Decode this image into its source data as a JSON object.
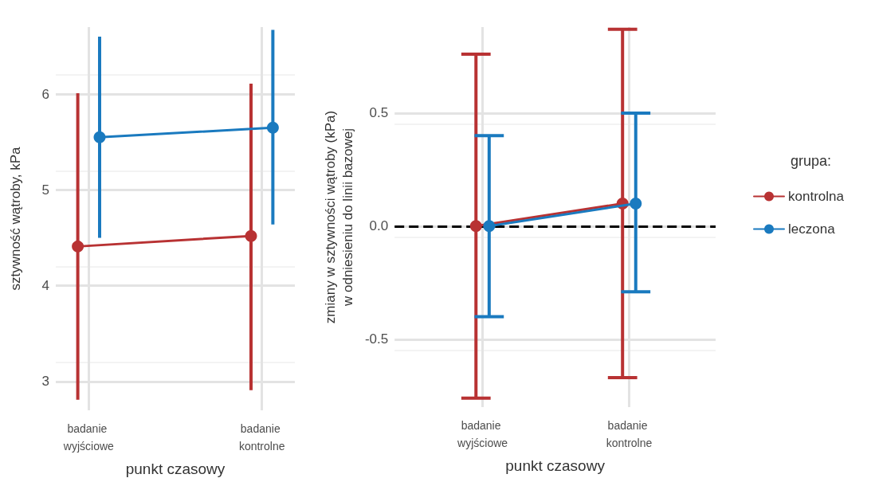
{
  "chart_data": [
    {
      "type": "line",
      "xlabel": "punkt czasowy",
      "ylabel": "sztywność wątroby, kPa",
      "categories": [
        "badanie wyjściowe",
        "badanie kontrolne"
      ],
      "series": [
        {
          "color": "#b83233",
          "values": [
            4.41,
            4.52
          ],
          "errors": [
            [
              2.81,
              6.01
            ],
            [
              2.91,
              6.11
            ]
          ]
        },
        {
          "color": "#1a7abf",
          "values": [
            5.55,
            5.65
          ],
          "errors": [
            [
              4.5,
              6.6
            ],
            [
              4.64,
              6.67
            ]
          ]
        }
      ],
      "ylim": [
        2.7,
        6.7
      ],
      "yticks": [
        3,
        4,
        5,
        6
      ],
      "grid": true,
      "legend": false,
      "marker": "circle",
      "line_style": "solid"
    },
    {
      "type": "line",
      "xlabel": "punkt czasowy",
      "ylabel": "zmiany w sztywności wątroby (kPa)\nw odniesieniu do linii bazowej",
      "categories": [
        "badanie wyjściowe",
        "badanie kontrolne"
      ],
      "series": [
        {
          "name": "kontrolna",
          "color": "#b83233",
          "values": [
            0,
            0.1
          ],
          "errors": [
            [
              -0.76,
              0.76
            ],
            [
              -0.67,
              0.87
            ]
          ]
        },
        {
          "name": "leczona",
          "color": "#1a7abf",
          "values": [
            0,
            0.1
          ],
          "errors": [
            [
              -0.4,
              0.4
            ],
            [
              -0.29,
              0.5
            ]
          ]
        }
      ],
      "ylim": [
        -0.8,
        0.88
      ],
      "yticks": [
        -0.5,
        {
          "value": 0,
          "label": "0.0"
        },
        0.5
      ],
      "grid": true,
      "legend": "right",
      "legend_title": "grupa:",
      "marker": "circle",
      "line_style": "solid",
      "ref_lines": [
        {
          "axis": "y",
          "value": 0,
          "label": null,
          "color": "#000000",
          "line_style": "dashed"
        }
      ]
    }
  ]
}
